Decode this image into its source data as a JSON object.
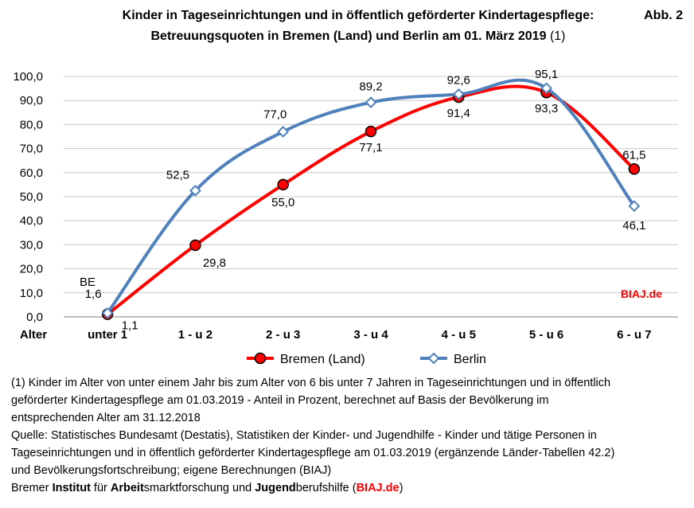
{
  "header": {
    "title_line1": "Kinder in Tageseinrichtungen und in öffentlich geförderter Kindertagespflege:",
    "title_line2": "Betreuungsquoten in Bremen (Land) und Berlin am 01. März 2019",
    "title_note": "(1)",
    "figure_label": "Abb. 2"
  },
  "chart_data": {
    "type": "line",
    "title": "Kinder in Tageseinrichtungen und in öffentlich geförderter Kindertagespflege: Betreuungsquoten in Bremen (Land) und Berlin am 01. März 2019 (1)",
    "xlabel": "Alter",
    "ylabel": "",
    "categories": [
      "unter 1",
      "1 - u 2",
      "2 - u 3",
      "3 - u 4",
      "4 - u 5",
      "5 - u 6",
      "6 - u 7"
    ],
    "ylim": [
      0,
      100
    ],
    "yticks": [
      "0,0",
      "10,0",
      "20,0",
      "30,0",
      "40,0",
      "50,0",
      "60,0",
      "70,0",
      "80,0",
      "90,0",
      "100,0"
    ],
    "grid": true,
    "legend": "bottom",
    "series": [
      {
        "name": "Bremen (Land)",
        "color": "#ff0000",
        "marker": "circle",
        "values": [
          1.1,
          29.8,
          55.0,
          77.1,
          91.4,
          93.3,
          61.5
        ],
        "labels": [
          "1,1",
          "29,8",
          "55,0",
          "77,1",
          "91,4",
          "93,3",
          "61,5"
        ]
      },
      {
        "name": "Berlin",
        "color": "#4f81bd",
        "marker": "diamond",
        "values": [
          1.6,
          52.5,
          77.0,
          89.2,
          92.6,
          95.1,
          46.1
        ],
        "labels": [
          "1,6",
          "52,5",
          "77,0",
          "89,2",
          "92,6",
          "95,1",
          "46,1"
        ]
      }
    ],
    "annotations": {
      "be_label": "BE",
      "watermark": "BIAJ.de",
      "watermark_color": "#ff0000"
    }
  },
  "footnotes": {
    "note_lines": [
      "(1) Kinder im Alter von unter einem Jahr bis zum Alter von 6 bis unter 7 Jahren in Tageseinrichtungen und in öffentlich",
      "geförderter Kindertagespflege am 01.03.2019  - Anteil in Prozent, berechnet auf Basis der Bevölkerung im",
      "entsprechenden Alter am 31.12.2018"
    ],
    "source_lines": [
      "Quelle: Statistisches Bundesamt (Destatis), Statistiken der Kinder- und Jugendhilfe - Kinder und tätige Personen in",
      "Tageseinrichtungen und in öffentlich geförderter Kindertagespflege am 01.03.2019 (ergänzende Länder-Tabellen 42.2)",
      "und Bevölkerungsfortschreibung; eigene Berechnungen (BIAJ)"
    ],
    "credit": {
      "p1": "Bremer ",
      "b1": "Institut",
      "p2": " für ",
      "b2": "Arbeit",
      "p3": "smarktforschung und ",
      "b3": "Jugend",
      "p4": "berufshilfe (",
      "link": "BIAJ.de",
      "p5": ")"
    }
  }
}
